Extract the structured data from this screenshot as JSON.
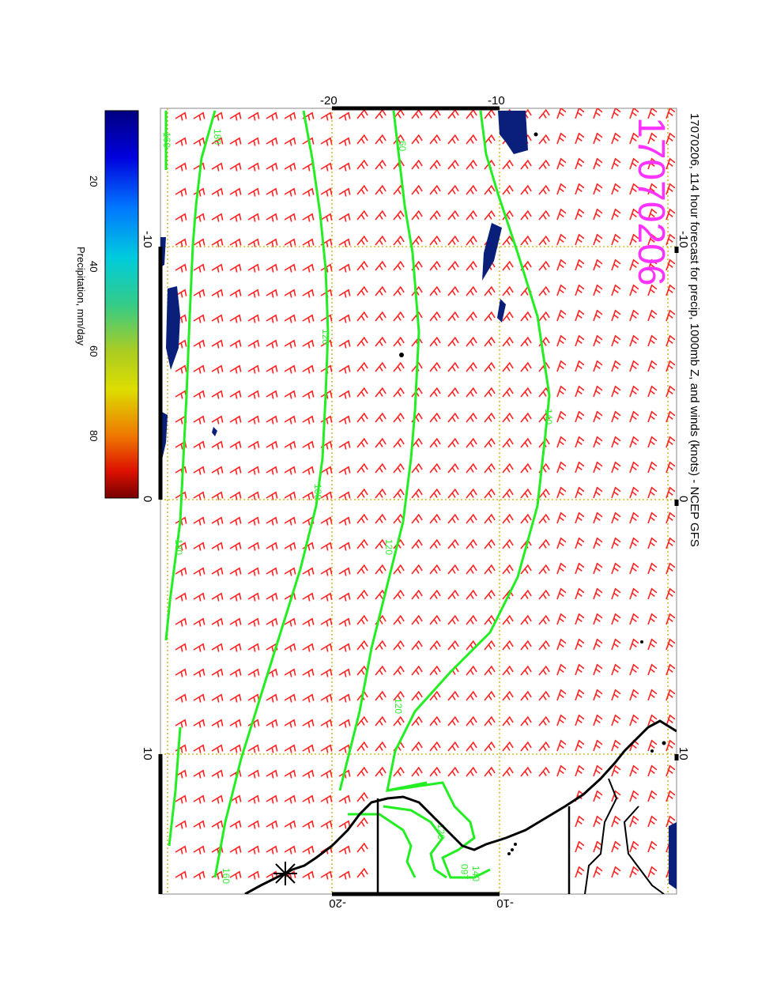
{
  "title": "17070206, 114 hour forecast for precip, 1000mb Z, and winds (knots) - NCEP GFS",
  "stamp": "17070206",
  "longitude_ticks": [
    "-10",
    "0",
    "10"
  ],
  "latitude_ticks": [
    "-20",
    "-10"
  ],
  "contour_labels": [
    "60",
    "120",
    "140",
    "160",
    "180"
  ],
  "colorbar": {
    "label": "Precipitation, mm/day",
    "ticks": [
      "20",
      "40",
      "60",
      "80"
    ],
    "colors": [
      "#000080",
      "#0000cd",
      "#0066ff",
      "#00ccdd",
      "#33cc88",
      "#99cc33",
      "#dddd00",
      "#ee8800",
      "#dd2200",
      "#770000"
    ]
  },
  "colors": {
    "contour": "#22ee22",
    "wind_barb": "#ff2222",
    "grid": "#ccaa00",
    "precip": "#0a1f7a",
    "stamp": "#ff33ff"
  }
}
